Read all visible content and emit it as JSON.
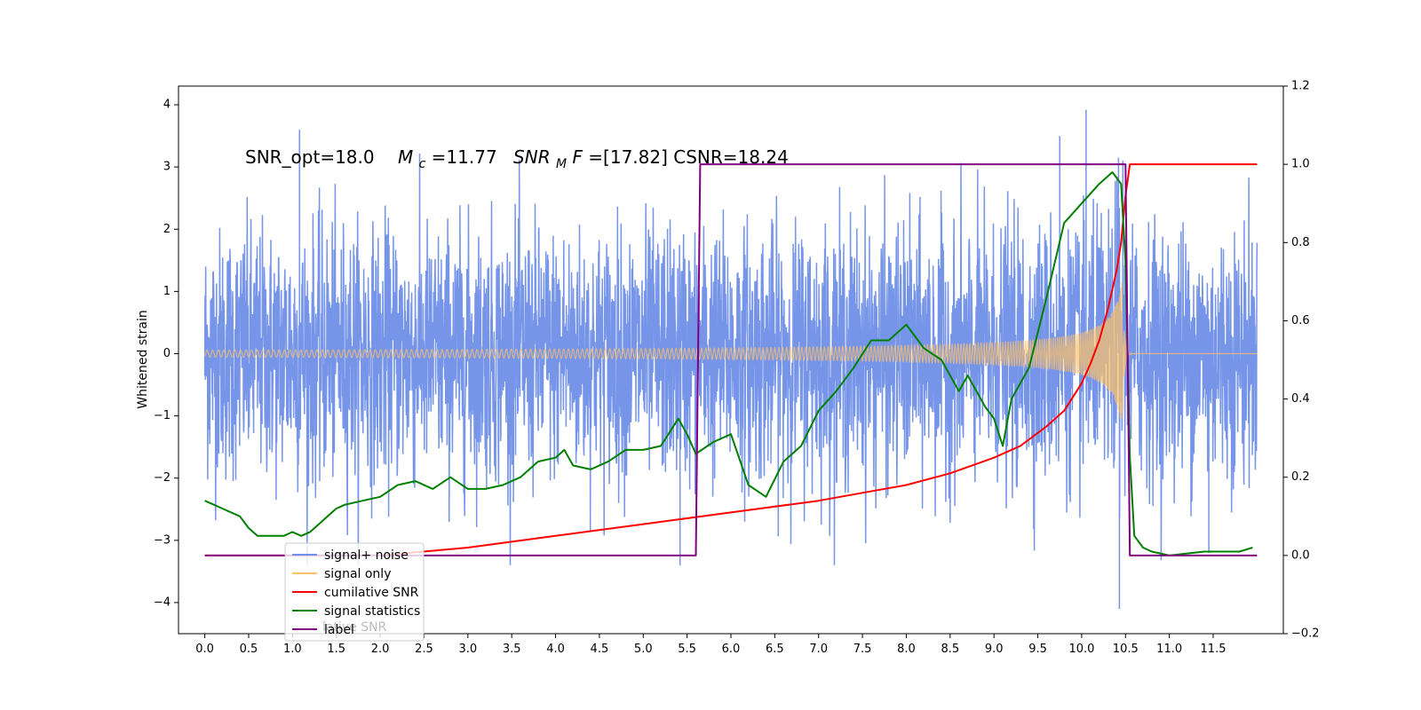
{
  "chart_data": {
    "type": "line",
    "annotation": {
      "snr_opt": "SNR_opt=18.0",
      "mc_sym": "M",
      "mc_sub": "c",
      "mc_val": "=11.77",
      "snr_sym": "SNR",
      "snr_sub": "M",
      "snr_f": "F",
      "snr_val": "=[17.82] CSNR=18.24"
    },
    "ylabel": "Whitened strain",
    "x_ticks": [
      "0.0",
      "0.5",
      "1.0",
      "1.5",
      "2.0",
      "2.5",
      "3.0",
      "3.5",
      "4.0",
      "4.5",
      "5.0",
      "5.5",
      "6.0",
      "6.5",
      "7.0",
      "7.5",
      "8.0",
      "8.5",
      "9.0",
      "9.5",
      "10.0",
      "10.5",
      "11.0",
      "11.5"
    ],
    "y_ticks": [
      "4",
      "3",
      "2",
      "1",
      "0",
      "−1",
      "−2",
      "−3",
      "−4"
    ],
    "y2_ticks": [
      "1.2",
      "1.0",
      "0.8",
      "0.6",
      "0.4",
      "0.2",
      "0.0",
      "−0.2"
    ],
    "xlim": [
      -0.3,
      12.3
    ],
    "ylim": [
      -4.5,
      4.3
    ],
    "y2lim": [
      -0.2,
      1.2
    ],
    "legend": {
      "location": "lower-left",
      "entries": [
        {
          "label": "signal+ noise",
          "color": "#6f8fe8"
        },
        {
          "label": "signal only",
          "color": "#ffc266"
        },
        {
          "label": "cumilative SNR",
          "color": "#ff0000"
        },
        {
          "label": "signal statistics",
          "color": "#008000"
        },
        {
          "label": "label",
          "color": "#800080"
        }
      ],
      "overlapped_text": "lative SNR"
    },
    "series": [
      {
        "name": "signal+ noise",
        "axis": "left",
        "color": "#6f8fe8",
        "x_range": [
          0.0,
          12.0
        ],
        "typical_amplitude": 1.0,
        "peak_max": 3.92,
        "peak_min": -4.1
      },
      {
        "name": "signal only",
        "axis": "left",
        "color": "#ffc266",
        "chirp_start": 0.0,
        "merger_time": 10.47,
        "peak_amplitude": 1.4
      },
      {
        "name": "cumilative SNR",
        "axis": "right",
        "color": "#ff0000",
        "x": [
          0.0,
          1.0,
          2.0,
          3.0,
          4.0,
          5.0,
          6.0,
          7.0,
          7.5,
          8.0,
          8.5,
          9.0,
          9.3,
          9.6,
          9.8,
          10.0,
          10.1,
          10.2,
          10.3,
          10.4,
          10.45,
          10.5,
          10.55,
          12.0
        ],
        "y": [
          0.0,
          0.0,
          0.0,
          0.02,
          0.05,
          0.08,
          0.11,
          0.14,
          0.16,
          0.18,
          0.21,
          0.25,
          0.28,
          0.33,
          0.37,
          0.44,
          0.49,
          0.55,
          0.63,
          0.73,
          0.8,
          0.92,
          1.0,
          1.0
        ]
      },
      {
        "name": "signal statistics",
        "axis": "right",
        "color": "#008000",
        "x": [
          0.0,
          0.1,
          0.2,
          0.3,
          0.4,
          0.5,
          0.6,
          0.7,
          0.8,
          0.9,
          1.0,
          1.1,
          1.2,
          1.3,
          1.4,
          1.5,
          1.6,
          1.8,
          2.0,
          2.2,
          2.4,
          2.6,
          2.8,
          3.0,
          3.2,
          3.4,
          3.6,
          3.8,
          4.0,
          4.1,
          4.2,
          4.4,
          4.6,
          4.8,
          5.0,
          5.2,
          5.4,
          5.5,
          5.6,
          5.8,
          6.0,
          6.2,
          6.4,
          6.6,
          6.8,
          7.0,
          7.2,
          7.4,
          7.6,
          7.8,
          8.0,
          8.2,
          8.4,
          8.6,
          8.7,
          8.9,
          9.0,
          9.1,
          9.2,
          9.4,
          9.6,
          9.8,
          10.0,
          10.2,
          10.35,
          10.45,
          10.5,
          10.55,
          10.6,
          10.7,
          10.8,
          11.0,
          11.4,
          11.8,
          11.95
        ],
        "y": [
          0.14,
          0.13,
          0.12,
          0.11,
          0.1,
          0.07,
          0.05,
          0.05,
          0.05,
          0.05,
          0.06,
          0.05,
          0.06,
          0.08,
          0.1,
          0.12,
          0.13,
          0.14,
          0.15,
          0.18,
          0.19,
          0.17,
          0.2,
          0.17,
          0.17,
          0.18,
          0.2,
          0.24,
          0.25,
          0.27,
          0.23,
          0.22,
          0.24,
          0.27,
          0.27,
          0.28,
          0.35,
          0.31,
          0.26,
          0.29,
          0.31,
          0.18,
          0.15,
          0.24,
          0.28,
          0.37,
          0.42,
          0.48,
          0.55,
          0.55,
          0.59,
          0.53,
          0.5,
          0.42,
          0.46,
          0.38,
          0.35,
          0.28,
          0.4,
          0.48,
          0.66,
          0.85,
          0.9,
          0.95,
          0.98,
          0.95,
          0.75,
          0.25,
          0.05,
          0.02,
          0.01,
          0.0,
          0.01,
          0.01,
          0.02
        ]
      },
      {
        "name": "label",
        "axis": "right",
        "color": "#800080",
        "x": [
          0.0,
          5.6,
          5.65,
          10.5,
          10.55,
          12.0
        ],
        "y": [
          0.0,
          0.0,
          1.0,
          1.0,
          0.0,
          0.0
        ]
      }
    ]
  }
}
